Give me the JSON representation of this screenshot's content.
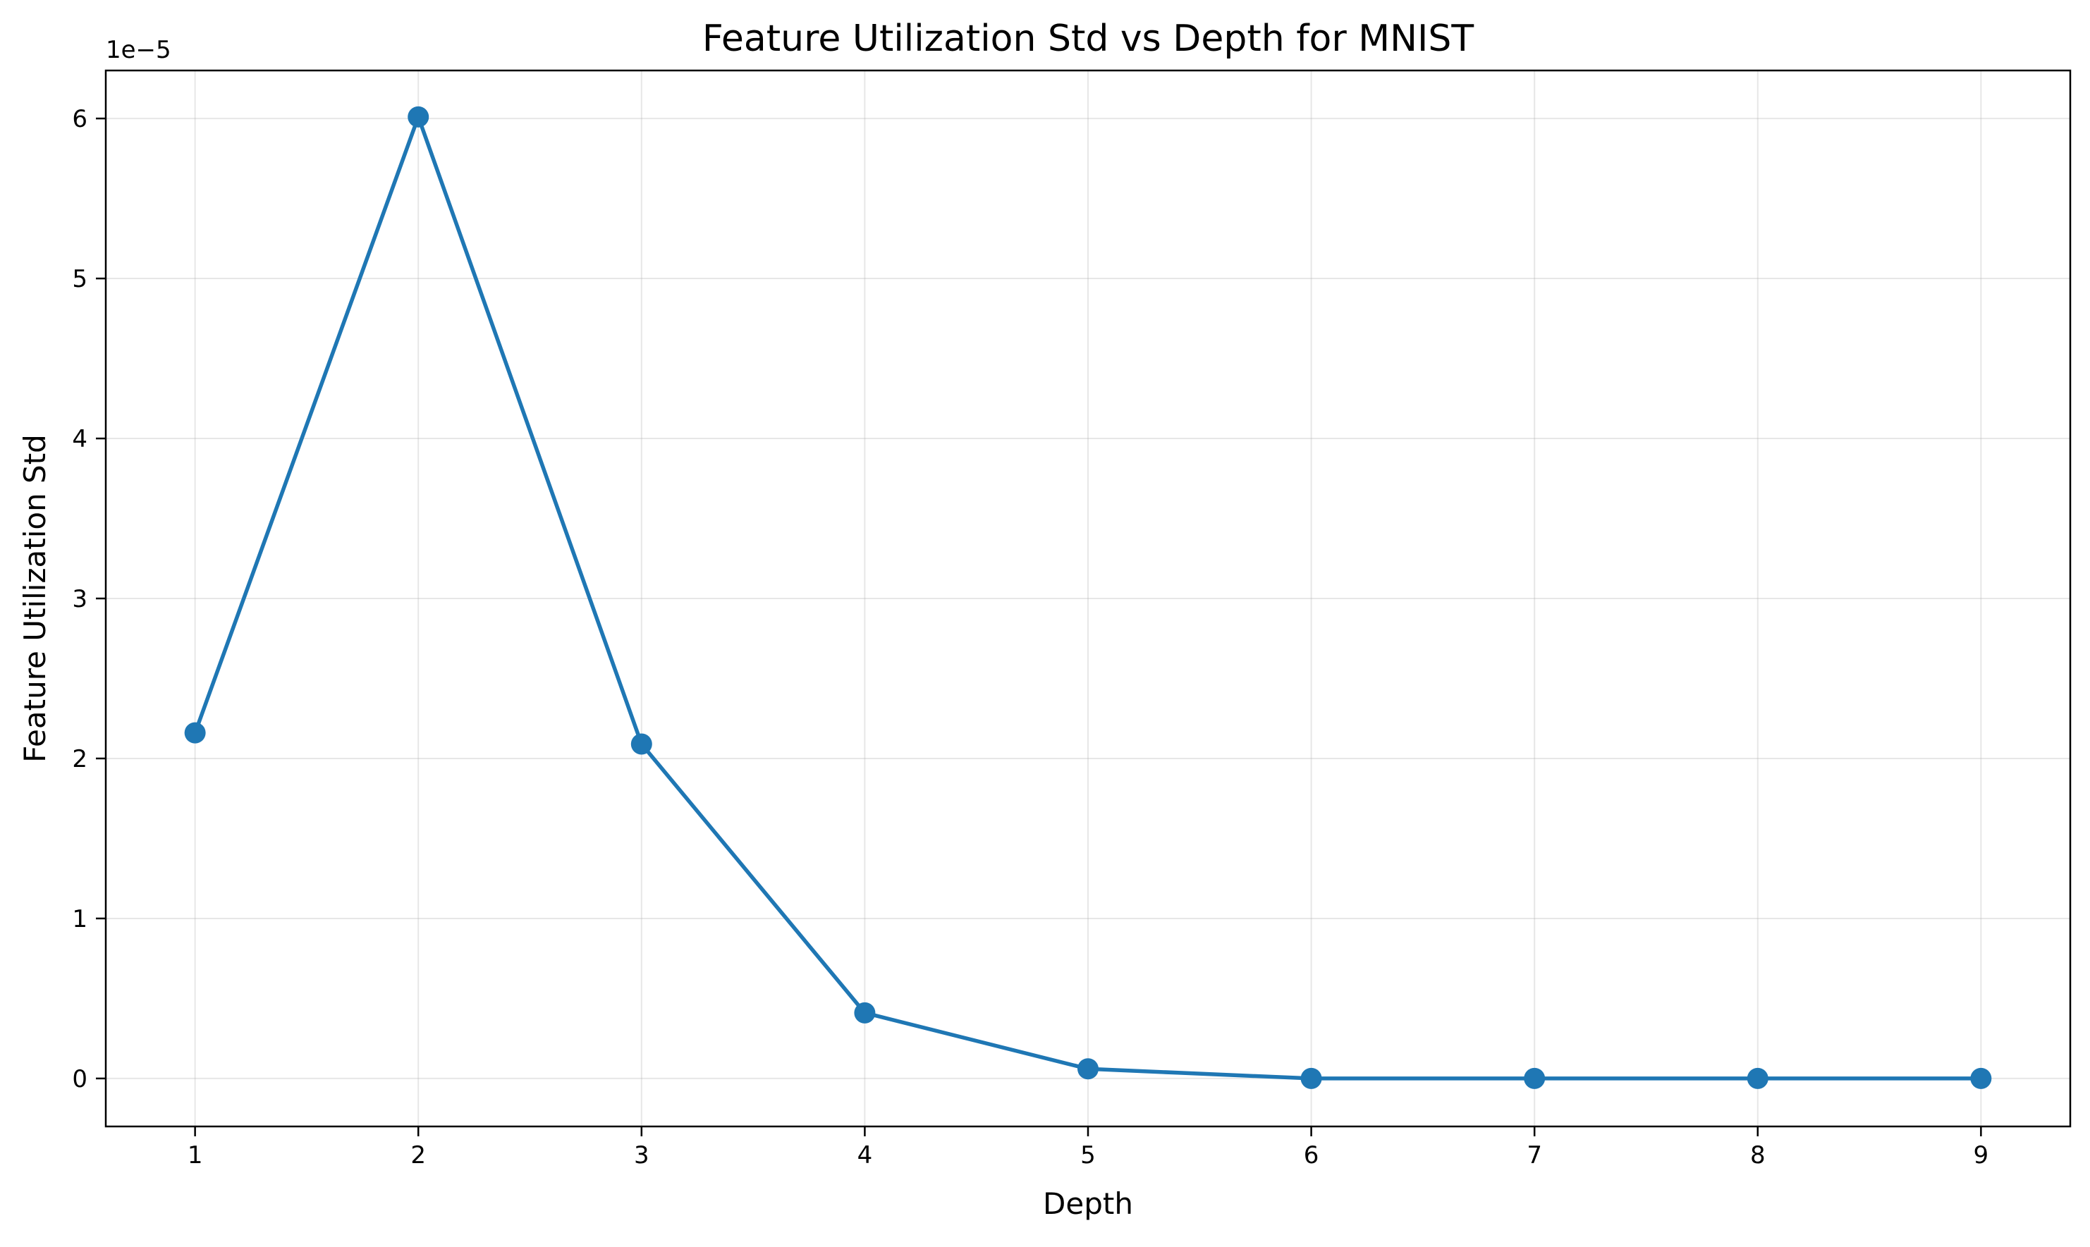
{
  "chart_data": {
    "type": "line",
    "title": "Feature Utilization Std vs Depth for MNIST",
    "xlabel": "Depth",
    "ylabel": "Feature Utilization Std",
    "y_offset_label": "1e−5",
    "x": [
      1,
      2,
      3,
      4,
      5,
      6,
      7,
      8,
      9
    ],
    "series": [
      {
        "values": [
          2.16e-05,
          6.01e-05,
          2.09e-05,
          4.1e-06,
          6e-07,
          0.0,
          0.0,
          0.0,
          0.0
        ],
        "color": "#1f77b4",
        "marker": "circle"
      }
    ],
    "xlim": [
      0.6,
      9.4
    ],
    "ylim": [
      -3e-06,
      6.3e-05
    ],
    "x_ticks": [
      1,
      2,
      3,
      4,
      5,
      6,
      7,
      8,
      9
    ],
    "x_tick_labels": [
      "1",
      "2",
      "3",
      "4",
      "5",
      "6",
      "7",
      "8",
      "9"
    ],
    "y_ticks": [
      0,
      1e-05,
      2e-05,
      3e-05,
      4e-05,
      5e-05,
      6e-05
    ],
    "y_tick_labels": [
      "0",
      "1",
      "2",
      "3",
      "4",
      "5",
      "6"
    ],
    "grid": true,
    "legend": "none"
  }
}
